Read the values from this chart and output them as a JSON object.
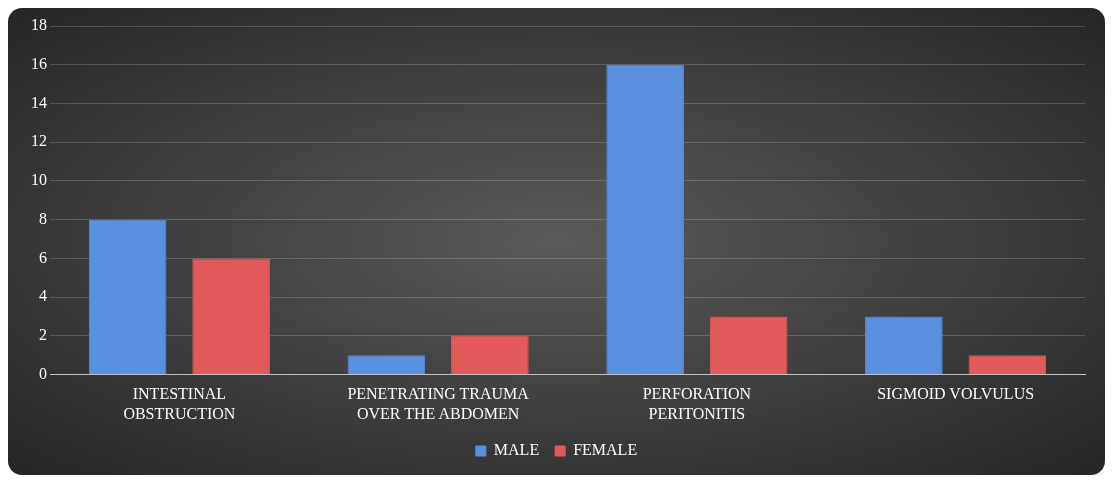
{
  "chart_data": {
    "type": "bar",
    "categories": [
      "INTESTINAL OBSTRUCTION",
      "PENETRATING TRAUMA OVER THE ABDOMEN",
      "PERFORATION PERITONITIS",
      "SIGMOID VOLVULUS"
    ],
    "series": [
      {
        "name": "MALE",
        "color": "#5b8fe0",
        "values": [
          8,
          1,
          16,
          3
        ]
      },
      {
        "name": "FEMALE",
        "color": "#e25a5a",
        "values": [
          6,
          2,
          3,
          1
        ]
      }
    ],
    "ylim": [
      0,
      18
    ],
    "yticks": [
      0,
      2,
      4,
      6,
      8,
      10,
      12,
      14,
      16,
      18
    ],
    "grid": "y",
    "legend": "bottom"
  }
}
